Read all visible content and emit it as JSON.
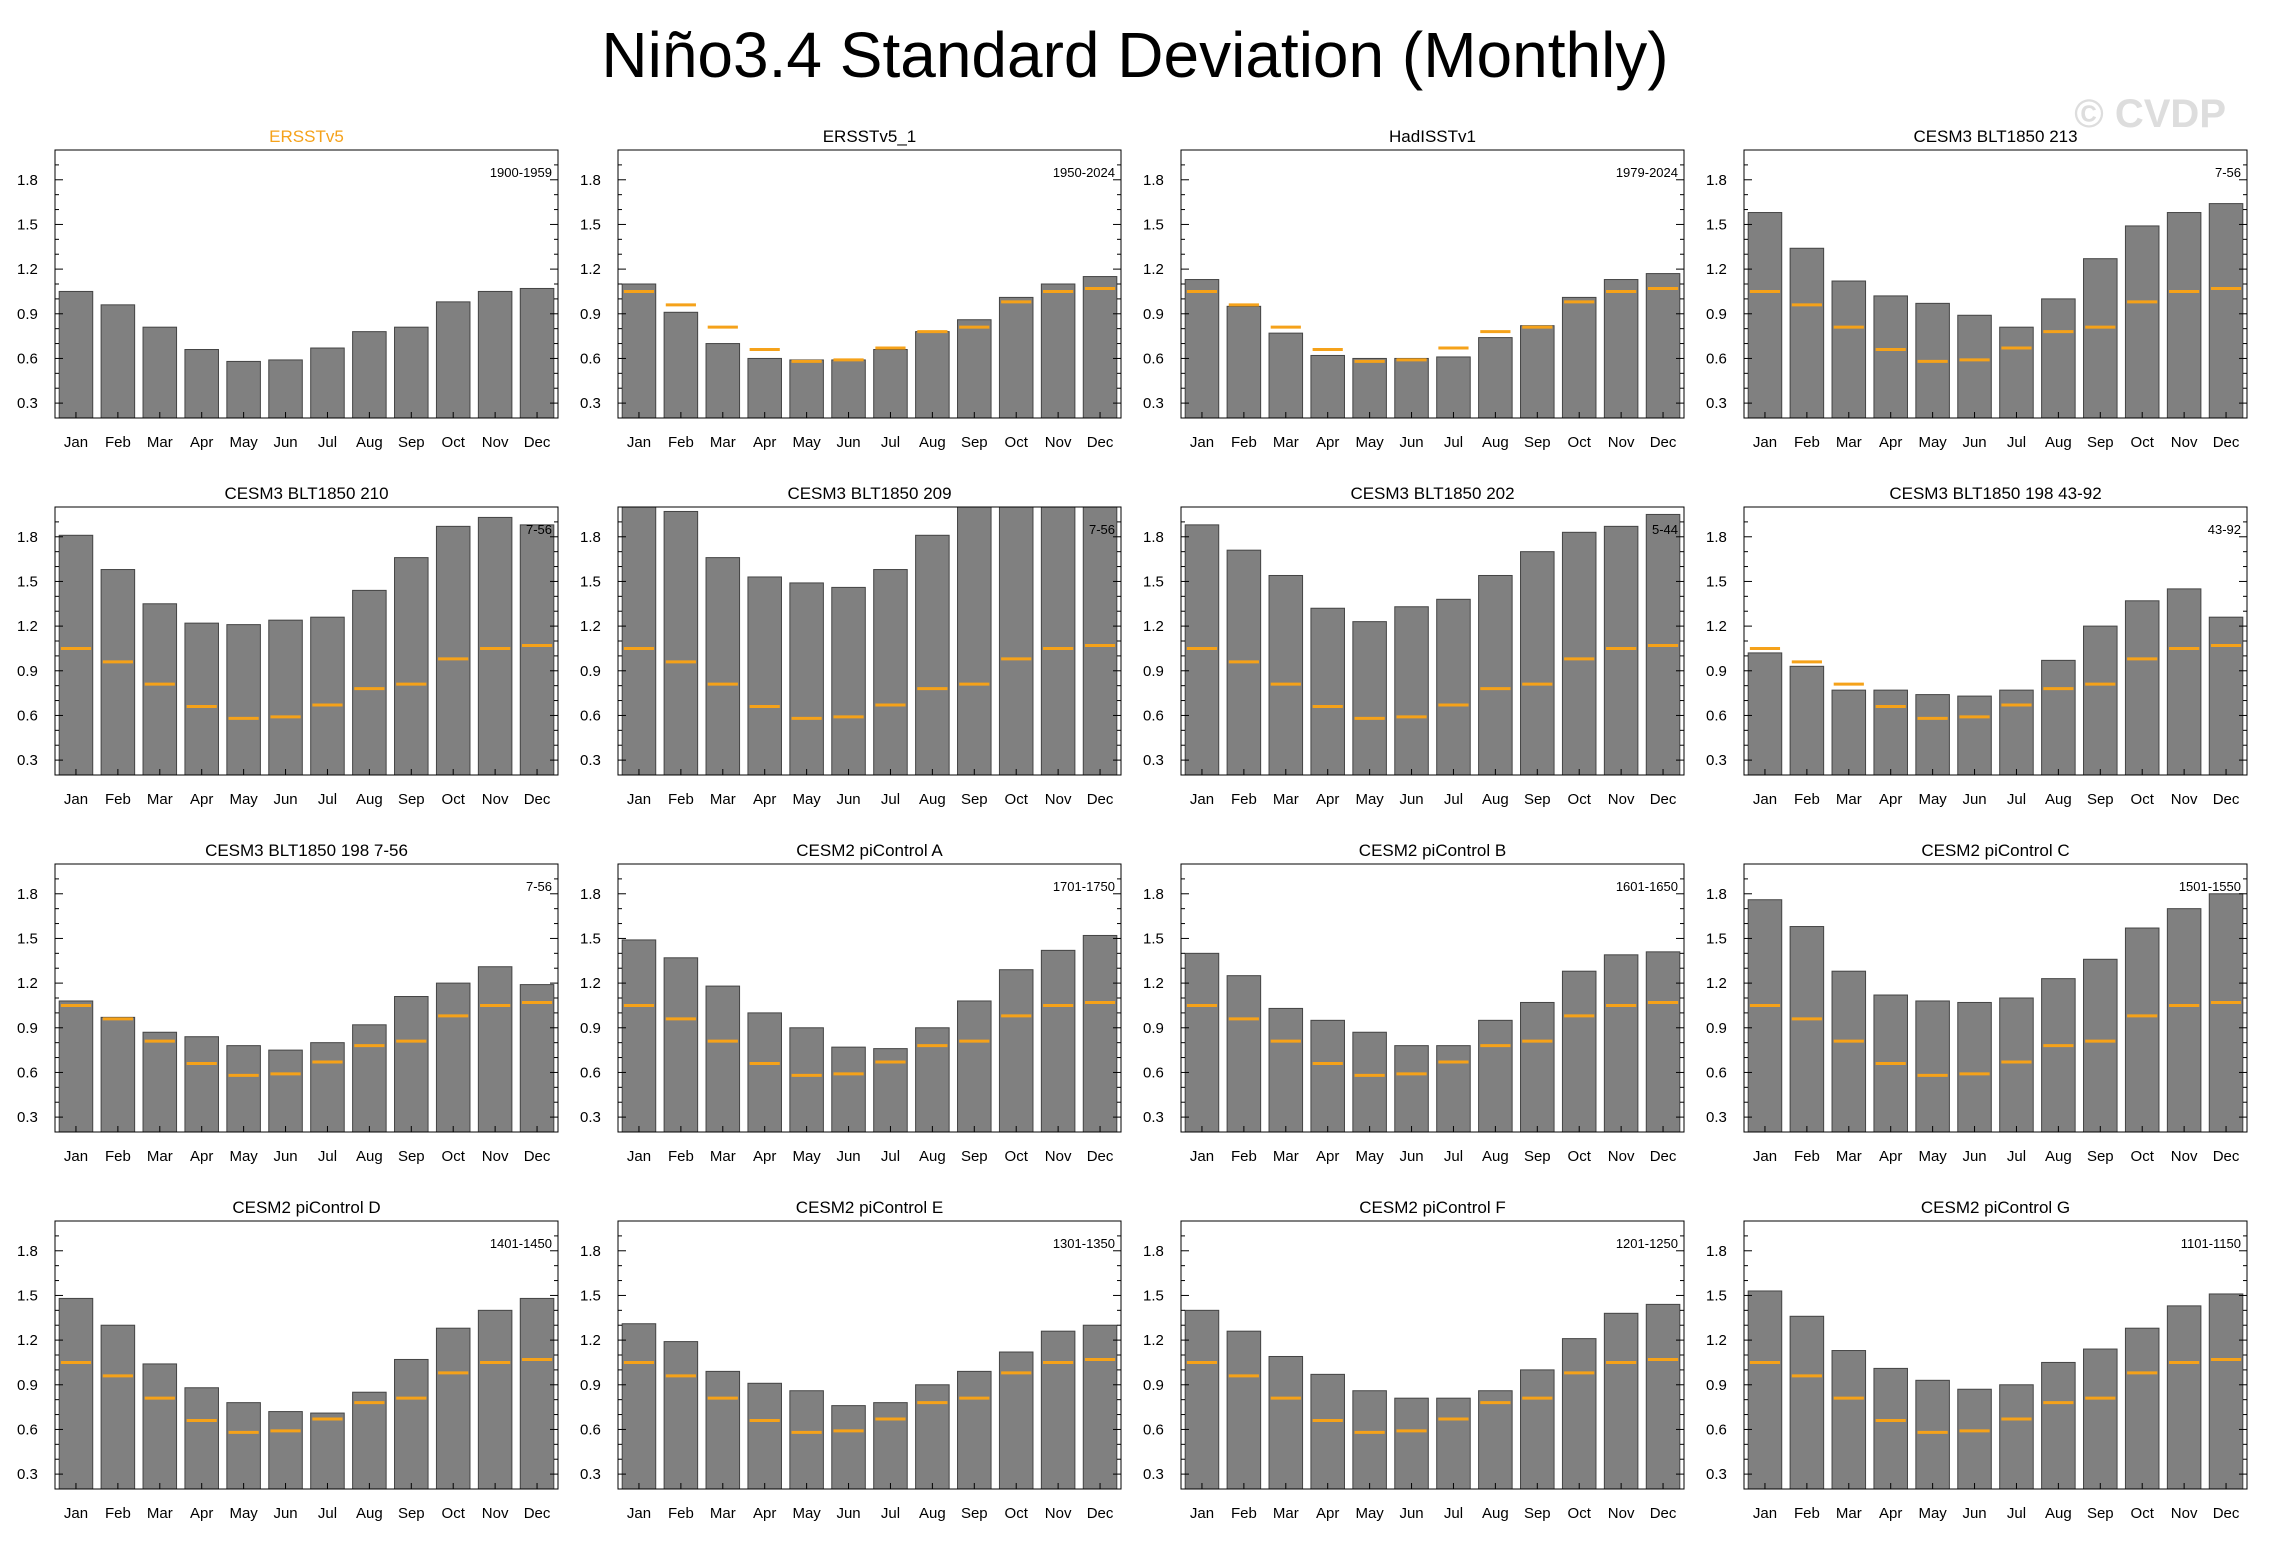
{
  "title": "Niño3.4 Standard Deviation (Monthly)",
  "watermark": "© CVDP",
  "colors": {
    "bar": "#808080",
    "observed": "#f5a21a",
    "obs_title": "#f5a21a"
  },
  "chart_data": {
    "type": "bar",
    "layout": "4x4 grid of panels",
    "categories": [
      "Jan",
      "Feb",
      "Mar",
      "Apr",
      "May",
      "Jun",
      "Jul",
      "Aug",
      "Sep",
      "Oct",
      "Nov",
      "Dec"
    ],
    "ylim": [
      0.2,
      2.0
    ],
    "yticks": [
      0.3,
      0.6,
      0.9,
      1.2,
      1.5,
      1.8
    ],
    "ytick_labels": [
      "0.3",
      "0.6",
      "0.9",
      "1.2",
      "1.5",
      "1.8"
    ],
    "reference": {
      "name": "ERSSTv5",
      "description_marker": "orange line",
      "values": [
        1.05,
        0.96,
        0.81,
        0.66,
        0.58,
        0.59,
        0.67,
        0.78,
        0.81,
        0.98,
        1.05,
        1.07
      ]
    },
    "panels": [
      {
        "title": "ERSSTv5",
        "period": "1900-1959",
        "is_reference": true,
        "values": [
          1.05,
          0.96,
          0.81,
          0.66,
          0.58,
          0.59,
          0.67,
          0.78,
          0.81,
          0.98,
          1.05,
          1.07
        ]
      },
      {
        "title": "ERSSTv5_1",
        "period": "1950-2024",
        "values": [
          1.1,
          0.91,
          0.7,
          0.6,
          0.59,
          0.59,
          0.66,
          0.78,
          0.86,
          1.01,
          1.1,
          1.15
        ]
      },
      {
        "title": "HadISSTv1",
        "period": "1979-2024",
        "values": [
          1.13,
          0.95,
          0.77,
          0.62,
          0.6,
          0.6,
          0.61,
          0.74,
          0.82,
          1.01,
          1.13,
          1.17
        ]
      },
      {
        "title": "CESM3 BLT1850 213",
        "period": "7-56",
        "values": [
          1.58,
          1.34,
          1.12,
          1.02,
          0.97,
          0.89,
          0.81,
          1.0,
          1.27,
          1.49,
          1.58,
          1.64
        ]
      },
      {
        "title": "CESM3 BLT1850 210",
        "period": "7-56",
        "values": [
          1.81,
          1.58,
          1.35,
          1.22,
          1.21,
          1.24,
          1.26,
          1.44,
          1.66,
          1.87,
          1.93,
          1.88
        ]
      },
      {
        "title": "CESM3 BLT1850 209",
        "period": "7-56",
        "values": [
          2.0,
          1.97,
          1.66,
          1.53,
          1.49,
          1.46,
          1.58,
          1.81,
          2.0,
          2.0,
          2.0,
          2.0
        ]
      },
      {
        "title": "CESM3 BLT1850 202",
        "period": "5-44",
        "values": [
          1.88,
          1.71,
          1.54,
          1.32,
          1.23,
          1.33,
          1.38,
          1.54,
          1.7,
          1.83,
          1.87,
          1.95
        ]
      },
      {
        "title": "CESM3 BLT1850 198 43-92",
        "period": "43-92",
        "values": [
          1.02,
          0.93,
          0.77,
          0.77,
          0.74,
          0.73,
          0.77,
          0.97,
          1.2,
          1.37,
          1.45,
          1.26
        ]
      },
      {
        "title": "CESM3 BLT1850 198 7-56",
        "period": "7-56",
        "values": [
          1.08,
          0.97,
          0.87,
          0.84,
          0.78,
          0.75,
          0.8,
          0.92,
          1.11,
          1.2,
          1.31,
          1.19
        ]
      },
      {
        "title": "CESM2 piControl A",
        "period": "1701-1750",
        "values": [
          1.49,
          1.37,
          1.18,
          1.0,
          0.9,
          0.77,
          0.76,
          0.9,
          1.08,
          1.29,
          1.42,
          1.52
        ]
      },
      {
        "title": "CESM2 piControl B",
        "period": "1601-1650",
        "values": [
          1.4,
          1.25,
          1.03,
          0.95,
          0.87,
          0.78,
          0.78,
          0.95,
          1.07,
          1.28,
          1.39,
          1.41
        ]
      },
      {
        "title": "CESM2 piControl C",
        "period": "1501-1550",
        "values": [
          1.76,
          1.58,
          1.28,
          1.12,
          1.08,
          1.07,
          1.1,
          1.23,
          1.36,
          1.57,
          1.7,
          1.8
        ]
      },
      {
        "title": "CESM2 piControl D",
        "period": "1401-1450",
        "values": [
          1.48,
          1.3,
          1.04,
          0.88,
          0.78,
          0.72,
          0.71,
          0.85,
          1.07,
          1.28,
          1.4,
          1.48
        ]
      },
      {
        "title": "CESM2 piControl E",
        "period": "1301-1350",
        "values": [
          1.31,
          1.19,
          0.99,
          0.91,
          0.86,
          0.76,
          0.78,
          0.9,
          0.99,
          1.12,
          1.26,
          1.3
        ]
      },
      {
        "title": "CESM2 piControl F",
        "period": "1201-1250",
        "values": [
          1.4,
          1.26,
          1.09,
          0.97,
          0.86,
          0.81,
          0.81,
          0.86,
          1.0,
          1.21,
          1.38,
          1.44
        ]
      },
      {
        "title": "CESM2 piControl G",
        "period": "1101-1150",
        "values": [
          1.53,
          1.36,
          1.13,
          1.01,
          0.93,
          0.87,
          0.9,
          1.05,
          1.14,
          1.28,
          1.43,
          1.51
        ]
      }
    ]
  }
}
